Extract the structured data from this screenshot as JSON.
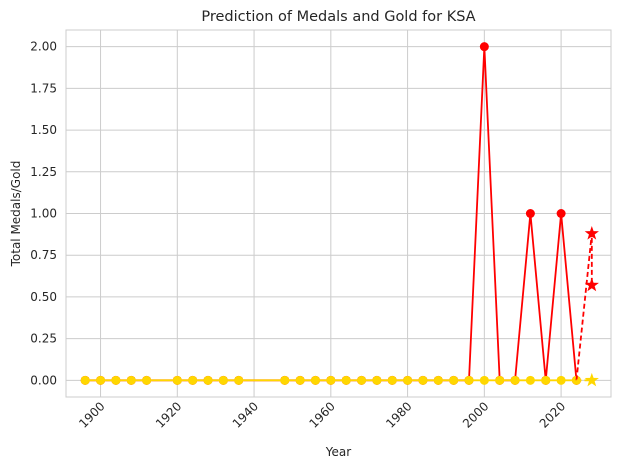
{
  "chart_data": {
    "type": "line",
    "title": "Prediction of Medals and Gold for KSA",
    "xlabel": "Year",
    "ylabel": "Total Medals/Gold",
    "xlim": [
      1891,
      2033
    ],
    "ylim": [
      -0.1,
      2.1
    ],
    "x_ticks": [
      1900,
      1920,
      1940,
      1960,
      1980,
      2000,
      2020
    ],
    "y_ticks": [
      "0.00",
      "0.25",
      "0.50",
      "0.75",
      "1.00",
      "1.25",
      "1.50",
      "1.75",
      "2.00"
    ],
    "grid": true,
    "legend": "none",
    "x": [
      1896,
      1900,
      1904,
      1908,
      1912,
      1920,
      1924,
      1928,
      1932,
      1936,
      1948,
      1952,
      1956,
      1960,
      1964,
      1968,
      1972,
      1976,
      1980,
      1984,
      1988,
      1992,
      1996,
      2000,
      2004,
      2008,
      2012,
      2016,
      2020,
      2024
    ],
    "series": [
      {
        "color": "#ff0000",
        "values": [
          0,
          0,
          0,
          0,
          0,
          0,
          0,
          0,
          0,
          0,
          0,
          0,
          0,
          0,
          0,
          0,
          0,
          0,
          0,
          0,
          0,
          0,
          0,
          2,
          0,
          0,
          1,
          0,
          1,
          0
        ]
      },
      {
        "color": "#ffd700",
        "values": [
          0,
          0,
          0,
          0,
          0,
          0,
          0,
          0,
          0,
          0,
          0,
          0,
          0,
          0,
          0,
          0,
          0,
          0,
          0,
          0,
          0,
          0,
          0,
          0,
          0,
          0,
          0,
          0,
          0,
          0
        ]
      }
    ],
    "predictions": [
      {
        "color": "#ff0000",
        "from": [
          2024,
          0
        ],
        "points": [
          [
            2028,
            0.88
          ],
          [
            2028,
            0.57
          ]
        ]
      },
      {
        "color": "#ffd700",
        "from": [
          2024,
          0
        ],
        "points": [
          [
            2028,
            0.0
          ]
        ]
      }
    ]
  }
}
